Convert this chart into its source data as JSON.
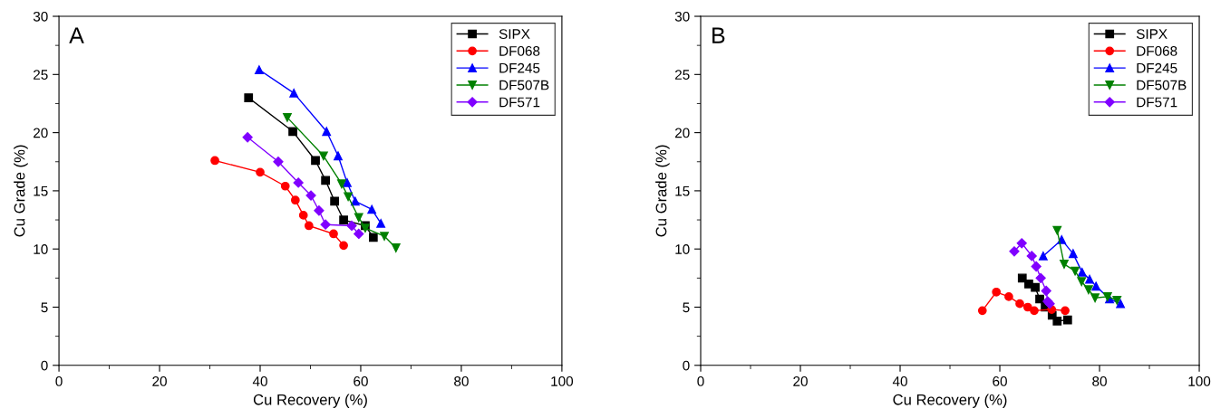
{
  "chart_data": [
    {
      "type": "line",
      "annotations": [
        "A"
      ],
      "xlabel": "Cu Recovery (%)",
      "ylabel": "Cu Grade (%)",
      "xlim": [
        0,
        100
      ],
      "ylim": [
        0,
        30
      ],
      "xticks": [
        0,
        {
          "value": 10,
          "label": null
        },
        20,
        {
          "value": 30,
          "label": null
        },
        40,
        {
          "value": 50,
          "label": null
        },
        60,
        {
          "value": 70,
          "label": null
        },
        80,
        {
          "value": 90,
          "label": null
        },
        100
      ],
      "yticks": [
        0,
        {
          "value": 2.5,
          "label": null
        },
        5,
        {
          "value": 7.5,
          "label": null
        },
        10,
        {
          "value": 12.5,
          "label": null
        },
        15,
        {
          "value": 17.5,
          "label": null
        },
        20,
        {
          "value": 22.5,
          "label": null
        },
        25,
        {
          "value": 27.5,
          "label": null
        },
        30
      ],
      "grid": false,
      "legend": "top right",
      "line_style": "solid",
      "series": [
        {
          "name": "SIPX",
          "color": "#000000",
          "marker": "square",
          "x": [
            37.7,
            46.5,
            51.0,
            53.0,
            54.8,
            56.6,
            60.9,
            62.5
          ],
          "values": [
            23.0,
            20.1,
            17.6,
            15.9,
            14.1,
            12.5,
            12.0,
            11.0
          ]
        },
        {
          "name": "DF068",
          "color": "#ff0000",
          "marker": "circle",
          "x": [
            31.0,
            40.0,
            45.0,
            47.0,
            48.6,
            49.7,
            54.6,
            56.6
          ],
          "values": [
            17.6,
            16.6,
            15.4,
            14.2,
            12.9,
            12.0,
            11.3,
            10.3
          ]
        },
        {
          "name": "DF245",
          "color": "#0000ff",
          "marker": "triangle",
          "x": [
            39.8,
            46.7,
            53.2,
            55.5,
            57.3,
            58.9,
            62.2,
            64.0
          ],
          "values": [
            25.4,
            23.4,
            20.1,
            18.0,
            15.7,
            14.1,
            13.4,
            12.2
          ]
        },
        {
          "name": "DF507B",
          "color": "#008000",
          "marker": "triangle_down",
          "x": [
            45.4,
            52.6,
            56.2,
            57.5,
            59.6,
            60.9,
            64.7,
            67.0
          ],
          "values": [
            21.3,
            18.0,
            15.6,
            14.5,
            12.7,
            11.8,
            11.1,
            10.1
          ]
        },
        {
          "name": "DF571",
          "color": "#8000ff",
          "marker": "diamond",
          "x": [
            37.5,
            43.6,
            47.6,
            50.1,
            51.7,
            53.0,
            58.2,
            59.6
          ],
          "values": [
            19.6,
            17.5,
            15.7,
            14.6,
            13.3,
            12.1,
            12.0,
            11.3
          ]
        }
      ]
    },
    {
      "type": "line",
      "annotations": [
        "B"
      ],
      "xlabel": "Cu Recovery (%)",
      "ylabel": "Cu Grade (%)",
      "xlim": [
        0,
        100
      ],
      "ylim": [
        0,
        30
      ],
      "xticks": [
        0,
        {
          "value": 10,
          "label": null
        },
        20,
        {
          "value": 30,
          "label": null
        },
        40,
        {
          "value": 50,
          "label": null
        },
        60,
        {
          "value": 70,
          "label": null
        },
        80,
        {
          "value": 90,
          "label": null
        },
        100
      ],
      "yticks": [
        0,
        {
          "value": 2.5,
          "label": null
        },
        5,
        {
          "value": 7.5,
          "label": null
        },
        10,
        {
          "value": 12.5,
          "label": null
        },
        15,
        {
          "value": 17.5,
          "label": null
        },
        20,
        {
          "value": 22.5,
          "label": null
        },
        25,
        {
          "value": 27.5,
          "label": null
        },
        30
      ],
      "grid": false,
      "legend": "top right",
      "line_style": "solid",
      "series": [
        {
          "name": "SIPX",
          "color": "#000000",
          "marker": "square",
          "x": [
            64.5,
            65.8,
            67.1,
            68.0,
            69.1,
            70.5,
            71.5,
            73.6
          ],
          "values": [
            7.5,
            7.0,
            6.7,
            5.7,
            5.0,
            4.3,
            3.8,
            3.9
          ]
        },
        {
          "name": "DF068",
          "color": "#ff0000",
          "marker": "circle",
          "x": [
            56.5,
            59.3,
            61.8,
            64.0,
            65.6,
            66.9,
            70.4,
            73.1
          ],
          "values": [
            4.7,
            6.3,
            5.9,
            5.3,
            5.0,
            4.7,
            4.8,
            4.7
          ]
        },
        {
          "name": "DF245",
          "color": "#0000ff",
          "marker": "triangle",
          "x": [
            68.7,
            72.4,
            74.7,
            76.5,
            78.0,
            79.3,
            82.0,
            84.2
          ],
          "values": [
            9.4,
            10.8,
            9.6,
            8.0,
            7.4,
            6.8,
            5.7,
            5.3
          ]
        },
        {
          "name": "DF507B",
          "color": "#008000",
          "marker": "triangle_down",
          "x": [
            71.5,
            72.9,
            75.1,
            76.4,
            77.8,
            79.1,
            81.6,
            83.5
          ],
          "values": [
            11.6,
            8.7,
            8.1,
            7.2,
            6.5,
            5.8,
            5.9,
            5.6
          ]
        },
        {
          "name": "DF571",
          "color": "#8000ff",
          "marker": "diamond",
          "x": [
            62.9,
            64.4,
            66.4,
            67.3,
            68.2,
            69.3,
            69.6,
            70.0
          ],
          "values": [
            9.8,
            10.5,
            9.4,
            8.5,
            7.5,
            6.4,
            5.5,
            5.3
          ]
        }
      ]
    }
  ]
}
